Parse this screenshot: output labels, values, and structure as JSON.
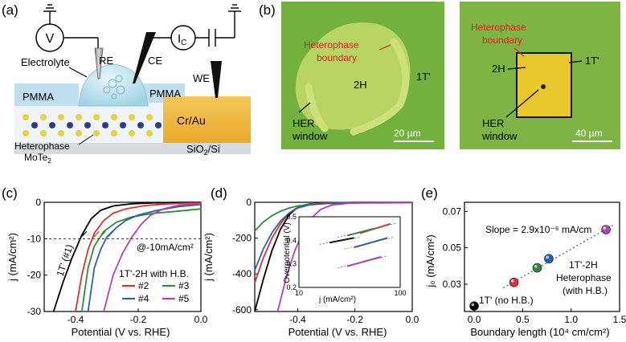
{
  "panel_a": {
    "label": "(a)",
    "meter_v": "V",
    "meter_ic": "I",
    "meter_ic_sub": "C",
    "re": "RE",
    "ce": "CE",
    "we": "WE",
    "electrolyte": "Electrolyte",
    "pmma_left": "PMMA",
    "pmma_right": "PMMA",
    "contact": "Cr/Au",
    "heterophase": "Heterophase",
    "mote": "MoTe",
    "mote_sub": "2",
    "substrate": "SiO",
    "substrate_sub": "2",
    "substrate_tail": "/Si"
  },
  "panel_b": {
    "label": "(b)",
    "left": {
      "hb_line1": "Heterophase",
      "hb_line2": "boundary",
      "phase_2h": "2H",
      "phase_1t": "1T'",
      "her_line1": "HER",
      "her_line2": "window",
      "scale": "20 µm"
    },
    "right": {
      "hb_line1": "Heterophase",
      "hb_line2": "boundary",
      "phase_2h": "2H",
      "phase_1t": "1T'",
      "her_line1": "HER",
      "her_line2": "window",
      "scale": "40 µm"
    }
  },
  "panel_c": {
    "label": "(c)",
    "xlabel": "Potential (V vs. RHE)",
    "ylabel": "j (mA/cm²)",
    "annotation": "@-10mA/cm²",
    "label_1t": "1T' (#1)",
    "legend_title": "1T'-2H with H.B.",
    "xticks": [
      "-0.4",
      "-0.2",
      "0.0"
    ],
    "yticks": [
      "0",
      "-10",
      "-20",
      "-30"
    ]
  },
  "panel_d": {
    "label": "(d)",
    "xlabel": "Potential (V vs. RHE)",
    "ylabel": "j (mA/cm²)",
    "xticks": [
      "-0.4",
      "-0.2",
      "0.0"
    ],
    "yticks": [
      "0",
      "-200",
      "-400",
      "-600"
    ],
    "inset_xlabel": "j (mA/cm²)",
    "inset_ylabel": "Overpotential (V)",
    "inset_xticks": [
      "10",
      "100"
    ],
    "inset_yticks": [
      "0.5",
      "0.4",
      "0.3",
      "0.2"
    ]
  },
  "panel_e": {
    "label": "(e)",
    "xlabel": "Boundary length (10⁴ cm/cm²)",
    "ylabel": "j₀ (mA/cm²)",
    "slope": "Slope = 2.9x10⁻⁶ mA/cm",
    "label_1t": "1T' (no H.B.)",
    "hetero_line1": "1T'-2H",
    "hetero_line2": "Heterophase",
    "hetero_line3": "(with H.B.)",
    "xticks": [
      "0.0",
      "0.5",
      "1.0",
      "1.5"
    ],
    "yticks": [
      "0.07",
      "0.05",
      "0.03"
    ]
  },
  "chart_data": [
    {
      "type": "line",
      "panel": "c",
      "xlabel": "Potential (V vs. RHE)",
      "ylabel": "j (mA/cm²)",
      "xlim": [
        -0.5,
        0.0
      ],
      "ylim": [
        -30,
        0
      ],
      "series": [
        {
          "name": "1T' (#1)",
          "color": "#000000",
          "x": [
            -0.47,
            -0.44,
            -0.41,
            -0.38,
            -0.35,
            -0.32,
            -0.28,
            -0.22,
            -0.15,
            -0.08,
            0.0
          ],
          "y": [
            -30,
            -22,
            -15,
            -9,
            -4.5,
            -2.2,
            -1.0,
            -0.4,
            -0.15,
            -0.05,
            0
          ]
        },
        {
          "name": "#2",
          "color": "#e03030",
          "x": [
            -0.4,
            -0.38,
            -0.36,
            -0.34,
            -0.31,
            -0.28,
            -0.24,
            -0.18,
            -0.1,
            0.0
          ],
          "y": [
            -30,
            -20,
            -13,
            -8.5,
            -5,
            -3,
            -1.8,
            -0.9,
            -0.4,
            -0.1
          ]
        },
        {
          "name": "#3",
          "color": "#2e8b3a",
          "x": [
            -0.38,
            -0.36,
            -0.34,
            -0.31,
            -0.27,
            -0.22,
            -0.15,
            -0.08,
            0.0
          ],
          "y": [
            -30,
            -18,
            -12,
            -8,
            -5.5,
            -4,
            -3,
            -2.5,
            -1.8
          ]
        },
        {
          "name": "#4",
          "color": "#2a5fb5",
          "x": [
            -0.36,
            -0.34,
            -0.32,
            -0.3,
            -0.27,
            -0.24,
            -0.2,
            -0.14,
            -0.07,
            0.0
          ],
          "y": [
            -30,
            -18,
            -13,
            -9.5,
            -7,
            -5,
            -3.5,
            -2.2,
            -1.2,
            -0.6
          ]
        },
        {
          "name": "#5",
          "color": "#b042b8",
          "x": [
            -0.31,
            -0.28,
            -0.25,
            -0.22,
            -0.19,
            -0.16,
            -0.12,
            -0.07,
            0.0
          ],
          "y": [
            -30,
            -20,
            -14,
            -9.5,
            -6,
            -3.5,
            -1.8,
            -0.8,
            -0.3
          ]
        }
      ],
      "reference_line": {
        "y": -10,
        "style": "dashed",
        "label": "@-10mA/cm²"
      }
    },
    {
      "type": "line",
      "panel": "d",
      "xlabel": "Potential (V vs. RHE)",
      "ylabel": "j (mA/cm²)",
      "xlim": [
        -0.55,
        0.0
      ],
      "ylim": [
        -610,
        0
      ],
      "series": [
        {
          "color": "#000000",
          "x": [
            -0.55,
            -0.52,
            -0.49,
            -0.46,
            -0.43,
            -0.4,
            -0.36,
            -0.3,
            -0.2,
            -0.1,
            0.0
          ],
          "y": [
            -620,
            -430,
            -270,
            -150,
            -70,
            -28,
            -10,
            -3,
            -1,
            -0.2,
            0
          ]
        },
        {
          "color": "#e03030",
          "x": [
            -0.55,
            -0.52,
            -0.49,
            -0.46,
            -0.43,
            -0.4,
            -0.37,
            -0.32,
            -0.25,
            -0.15,
            0.0
          ],
          "y": [
            -450,
            -310,
            -200,
            -120,
            -60,
            -28,
            -12,
            -5,
            -2,
            -0.7,
            -0.1
          ]
        },
        {
          "color": "#2e8b3a",
          "x": [
            -0.55,
            -0.52,
            -0.49,
            -0.46,
            -0.43,
            -0.4,
            -0.36,
            -0.3,
            -0.2,
            -0.1,
            0.0
          ],
          "y": [
            -160,
            -110,
            -75,
            -50,
            -32,
            -20,
            -12,
            -7,
            -4,
            -3,
            -2
          ]
        },
        {
          "color": "#2a5fb5",
          "x": [
            -0.55,
            -0.52,
            -0.49,
            -0.46,
            -0.43,
            -0.4,
            -0.36,
            -0.3,
            -0.2,
            -0.1,
            0.0
          ],
          "y": [
            -380,
            -260,
            -170,
            -105,
            -60,
            -32,
            -15,
            -6,
            -2.5,
            -1,
            -0.5
          ]
        },
        {
          "color": "#b042b8",
          "x": [
            -0.47,
            -0.44,
            -0.41,
            -0.38,
            -0.35,
            -0.32,
            -0.28,
            -0.22,
            -0.12,
            0.0
          ],
          "y": [
            -610,
            -420,
            -270,
            -160,
            -85,
            -40,
            -15,
            -5,
            -1,
            -0.3
          ]
        }
      ],
      "inset": {
        "type": "line",
        "xlabel": "j (mA/cm²)",
        "ylabel": "Overpotential (V)",
        "xscale": "log",
        "xlim": [
          10,
          100
        ],
        "ylim": [
          0.2,
          0.5
        ],
        "series": [
          {
            "color": "#000000",
            "x": [
              20,
              35
            ],
            "y": [
              0.39,
              0.41
            ]
          },
          {
            "color": "#e03030",
            "x": [
              40,
              80
            ],
            "y": [
              0.43,
              0.47
            ]
          },
          {
            "color": "#2e8b3a",
            "x": [
              30,
              55
            ],
            "y": [
              0.42,
              0.45
            ]
          },
          {
            "color": "#2a5fb5",
            "x": [
              35,
              75
            ],
            "y": [
              0.37,
              0.41
            ]
          },
          {
            "color": "#b042b8",
            "x": [
              30,
              65
            ],
            "y": [
              0.29,
              0.33
            ]
          }
        ]
      }
    },
    {
      "type": "scatter",
      "panel": "e",
      "xlabel": "Boundary length (10⁴ cm/cm²)",
      "ylabel": "j₀ (mA/cm²)",
      "xlim": [
        -0.1,
        1.5
      ],
      "ylim": [
        0.015,
        0.075
      ],
      "points": [
        {
          "x": 0.0,
          "y": 0.018,
          "color": "#000000"
        },
        {
          "x": 0.41,
          "y": 0.031,
          "color": "#e03030"
        },
        {
          "x": 0.65,
          "y": 0.039,
          "color": "#2e8b3a"
        },
        {
          "x": 0.77,
          "y": 0.044,
          "color": "#2a5fb5"
        },
        {
          "x": 1.36,
          "y": 0.06,
          "color": "#b042b8"
        }
      ],
      "fit_line": {
        "x": [
          0.3,
          1.45
        ],
        "y": [
          0.028,
          0.063
        ],
        "style": "dotted"
      },
      "slope_text": "Slope = 2.9x10⁻⁶ mA/cm"
    }
  ]
}
